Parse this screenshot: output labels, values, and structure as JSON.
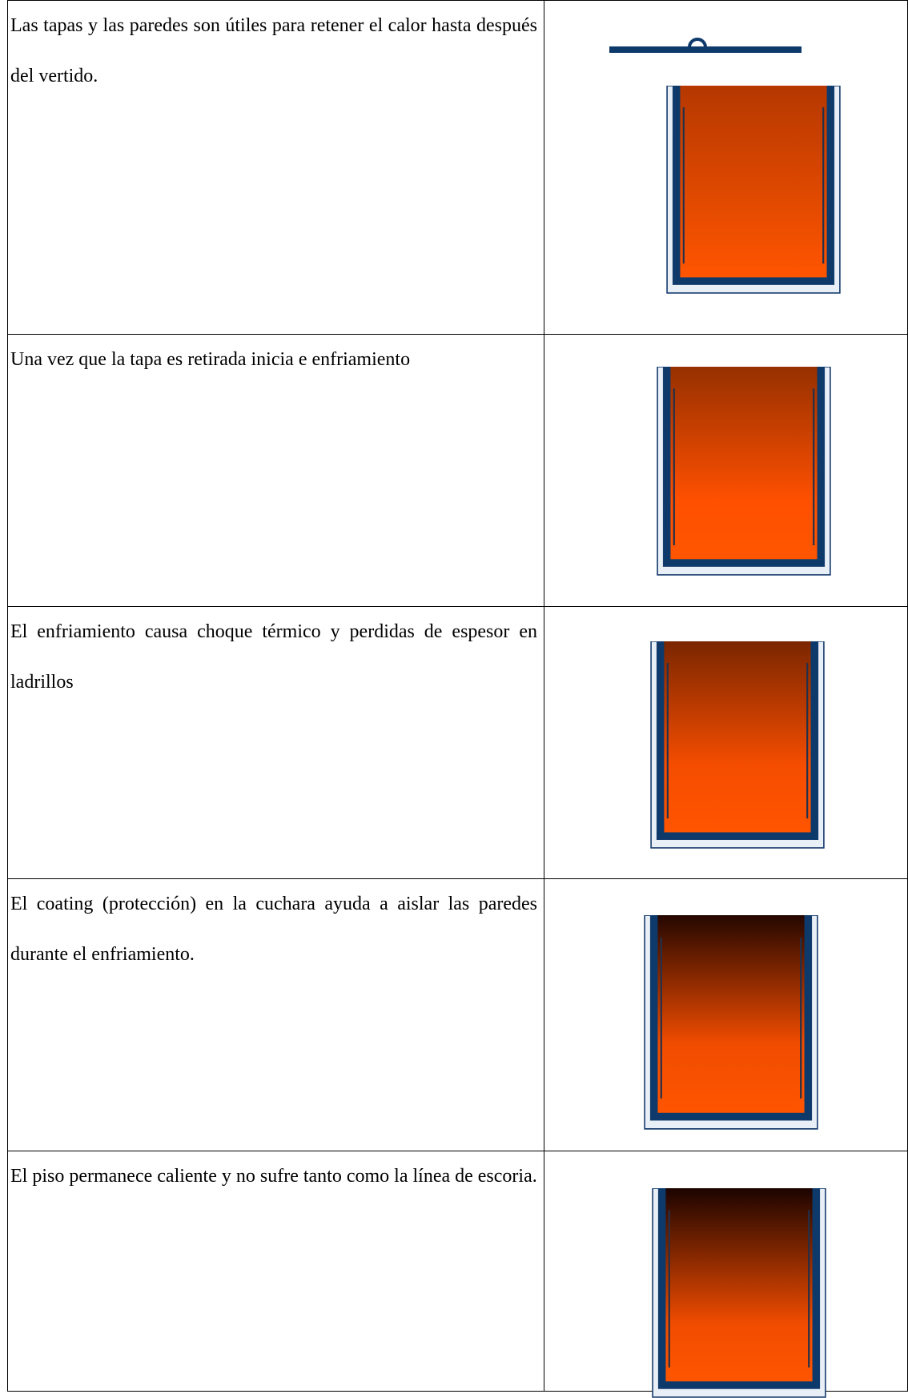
{
  "table": {
    "rows": [
      [
        "Las tapas y las paredes son útiles para retener el calor hasta después del vertido."
      ],
      [
        "Una vez que la tapa es retirada inicia e enfriamiento"
      ],
      [
        "El enfriamiento causa choque térmico y perdidas de espesor en ladrillos"
      ],
      [
        "El coating (protección) en la cuchara ayuda a aislar las paredes durante el enfriamiento."
      ],
      [
        "El piso permanece caliente y no sufre tanto como la línea de escoria."
      ]
    ]
  }
}
